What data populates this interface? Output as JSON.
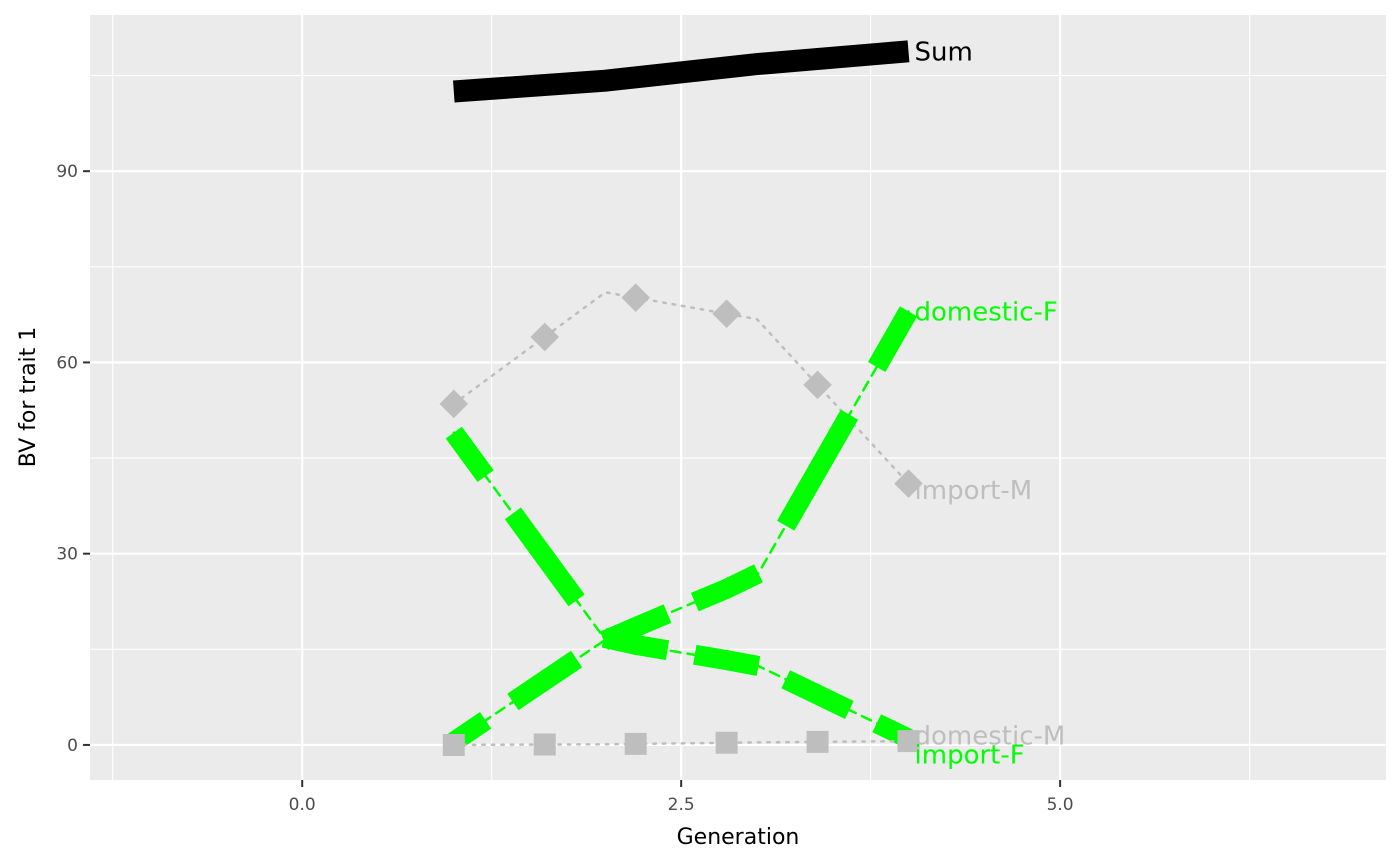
{
  "chart_data": {
    "type": "line",
    "title": "",
    "xlabel": "Generation",
    "ylabel": "BV for trait 1",
    "xlim": [
      -1.4,
      7.15
    ],
    "ylim": [
      -5.5,
      114.5
    ],
    "x_ticks": [
      0,
      2.5,
      5
    ],
    "x_tick_labels": [
      "0.0",
      "2.5",
      "5.0"
    ],
    "y_ticks": [
      0,
      30,
      60,
      90
    ],
    "y_tick_labels": [
      "0",
      "30",
      "60",
      "90"
    ],
    "grid": true,
    "legend": "none",
    "background": "#ebebeb",
    "series": [
      {
        "name": "Sum",
        "color": "#000000",
        "style": "solid",
        "points": [
          [
            1,
            102.5
          ],
          [
            2,
            104.2
          ],
          [
            3,
            106.8
          ],
          [
            4,
            108.8
          ]
        ]
      },
      {
        "name": "import-M",
        "color": "#bebebe",
        "style": "dotted",
        "points": [
          [
            1,
            53.5
          ],
          [
            2,
            71.0
          ],
          [
            3,
            66.8
          ],
          [
            4,
            41.0
          ]
        ]
      },
      {
        "name": "domestic-F",
        "color": "#00ff00",
        "style": "dashed",
        "points": [
          [
            1,
            0.5
          ],
          [
            2,
            16.5
          ],
          [
            3,
            26.5
          ],
          [
            4,
            68.0
          ]
        ]
      },
      {
        "name": "import-F",
        "color": "#00ff00",
        "style": "dashed",
        "points": [
          [
            1,
            49.0
          ],
          [
            2,
            16.5
          ],
          [
            3,
            12.5
          ],
          [
            4,
            1.0
          ]
        ]
      },
      {
        "name": "domestic-M",
        "color": "#bebebe",
        "style": "dotted",
        "points": [
          [
            1,
            0.0
          ],
          [
            2,
            0.1
          ],
          [
            3,
            0.4
          ],
          [
            4,
            0.6
          ]
        ]
      }
    ],
    "annotations": [
      {
        "text": "Sum",
        "x": 4,
        "y": 108.8,
        "color": "#000000"
      },
      {
        "text": "domestic-F",
        "x": 4,
        "y": 68.0,
        "color": "#00ff00"
      },
      {
        "text": "import-M",
        "x": 4,
        "y": 40.0,
        "color": "#bebebe"
      },
      {
        "text": "domestic-M",
        "x": 4,
        "y": 1.5,
        "color": "#bebebe"
      },
      {
        "text": "import-F",
        "x": 4,
        "y": -1.5,
        "color": "#00ff00"
      }
    ]
  }
}
